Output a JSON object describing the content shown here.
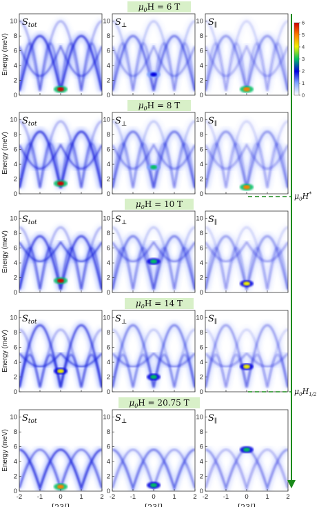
{
  "chart_data": {
    "type": "heatmap",
    "ylabel": "Energy (meV)",
    "xlabel_parts": [
      "[23",
      "l",
      "]"
    ],
    "x_range": [
      -2,
      2
    ],
    "y_range": [
      0,
      11
    ],
    "x_ticks": [
      "-2",
      "-1",
      "0",
      "1",
      "2"
    ],
    "y_ticks": [
      "0",
      "2",
      "4",
      "6",
      "8",
      "10"
    ],
    "colorbar": {
      "min": 0,
      "max": 6,
      "ticks": [
        "0",
        "1",
        "2",
        "3",
        "4",
        "5",
        "6"
      ],
      "colors": [
        "#ffffff",
        "#7fa4ff",
        "#0000e0",
        "#00c060",
        "#f0f000",
        "#ff8000",
        "#d00000"
      ]
    },
    "column_labels": [
      {
        "main": "S",
        "sub": "tot"
      },
      {
        "main": "S",
        "sub": "⊥"
      },
      {
        "main": "S",
        "sub": "∥"
      }
    ],
    "rows": [
      {
        "field_prefix": "μ",
        "field_sub": "0",
        "field_text": "H = 6 T"
      },
      {
        "field_prefix": "μ",
        "field_sub": "0",
        "field_text": "H = 8 T"
      },
      {
        "field_prefix": "μ",
        "field_sub": "0",
        "field_text": "H = 10 T"
      },
      {
        "field_prefix": "μ",
        "field_sub": "0",
        "field_text": "H = 14 T"
      },
      {
        "field_prefix": "μ",
        "field_sub": "0",
        "field_text": "H = 20.75 T"
      }
    ],
    "markers": [
      {
        "main": "μ",
        "sub": "0",
        "text": "H",
        "sup": "*",
        "sub2": ""
      },
      {
        "main": "μ",
        "sub": "0",
        "text": "H",
        "sup": "",
        "sub2": "1/2"
      }
    ]
  }
}
